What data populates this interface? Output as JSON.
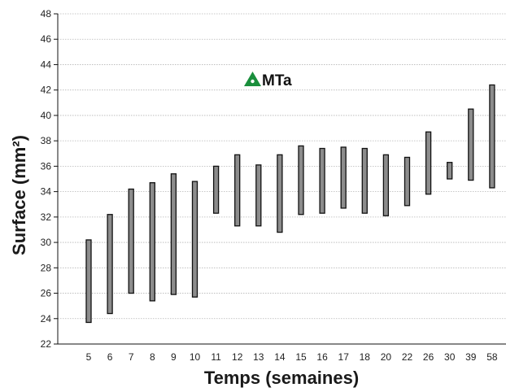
{
  "colors": {
    "bar_fill": "#8c8c8c",
    "bar_stroke": "#111111",
    "marker": "#1a8f3c",
    "grid": "#b5b5b5"
  },
  "chart_data": {
    "type": "bar",
    "subtype": "floating-range",
    "categories": [
      "5",
      "6",
      "7",
      "8",
      "9",
      "10",
      "11",
      "12",
      "13",
      "14",
      "15",
      "16",
      "17",
      "18",
      "20",
      "22",
      "26",
      "30",
      "39",
      "58"
    ],
    "series": [
      {
        "name": "MTa",
        "marker_icon": "green-triangle-icon",
        "low": [
          23.7,
          24.4,
          26.0,
          25.4,
          25.9,
          25.7,
          32.3,
          31.3,
          31.3,
          30.8,
          32.2,
          32.3,
          32.7,
          32.3,
          32.1,
          32.9,
          33.8,
          35.0,
          34.9,
          34.3
        ],
        "high": [
          30.2,
          32.2,
          34.2,
          34.7,
          35.4,
          34.8,
          36.0,
          36.9,
          36.1,
          36.9,
          37.6,
          37.4,
          37.5,
          37.4,
          36.9,
          36.7,
          38.7,
          36.3,
          40.5,
          42.4
        ]
      }
    ],
    "xlabel": "Temps (semaines)",
    "ylabel": "Surface (mm²)",
    "ylim": [
      22,
      48
    ],
    "yticks": [
      "22",
      "24",
      "26",
      "28",
      "30",
      "32",
      "34",
      "36",
      "38",
      "40",
      "42",
      "44",
      "46",
      "48"
    ],
    "grid": true,
    "legend_position": "top-center"
  }
}
